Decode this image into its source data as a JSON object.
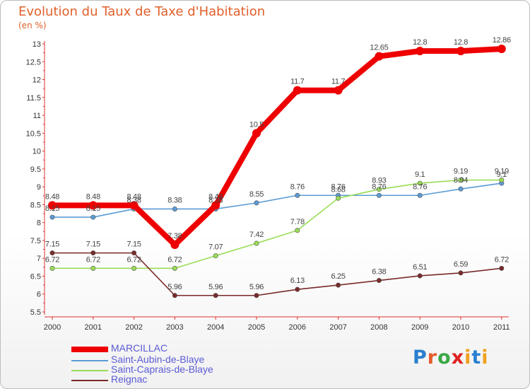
{
  "title": "Evolution du Taux de Taxe d'Habitation",
  "subtitle": "(en %)",
  "logo": {
    "text": "Proxiti",
    "letters": [
      "P",
      "r",
      "o",
      "x",
      "i",
      "t",
      "i"
    ]
  },
  "chart_data": {
    "type": "line",
    "x": [
      "2000",
      "2001",
      "2002",
      "2003",
      "2004",
      "2005",
      "2006",
      "2007",
      "2008",
      "2009",
      "2010",
      "2011"
    ],
    "ylim": [
      5.5,
      13
    ],
    "yticks": [
      "5.5",
      "6",
      "6.5",
      "7",
      "7.5",
      "8",
      "8.5",
      "9",
      "9.5",
      "10",
      "10.5",
      "11",
      "11.5",
      "12",
      "12.5",
      "13"
    ],
    "grid": false,
    "legend_position": "bottom-left",
    "series": [
      {
        "name": "MARCILLAC",
        "color": "#ee0000",
        "values": [
          8.48,
          8.48,
          8.48,
          7.38,
          8.48,
          10.5,
          11.7,
          11.7,
          12.65,
          12.8,
          12.8,
          12.86
        ],
        "labels": [
          "8.48",
          "8.48",
          "8.48",
          "7.38",
          "8.48",
          "10.5",
          "11.7",
          "11.7",
          "12.65",
          "12.8",
          "12.8",
          "12.86"
        ]
      },
      {
        "name": "Saint-Aubin-de-Blaye",
        "color": "#5b9bd5",
        "values": [
          8.15,
          8.15,
          8.38,
          8.38,
          8.38,
          8.55,
          8.76,
          8.76,
          8.76,
          8.76,
          8.94,
          9.1
        ],
        "labels": [
          "8.15",
          "8.15",
          "8.38",
          "8.38",
          "8.38",
          "8.55",
          "8.76",
          "8.76",
          "8.76",
          "8.76",
          "8.94",
          "9.1"
        ]
      },
      {
        "name": "Saint-Caprais-de-Blaye",
        "color": "#99dd55",
        "values": [
          6.72,
          6.72,
          6.72,
          6.72,
          7.07,
          7.42,
          7.78,
          8.68,
          8.93,
          9.1,
          9.19,
          9.19
        ],
        "labels": [
          "6.72",
          "6.72",
          "6.72",
          "6.72",
          "7.07",
          "7.42",
          "7.78",
          "8.68",
          "8.93",
          "9.1",
          "9.19",
          "9.19"
        ]
      },
      {
        "name": "Reignac",
        "color": "#7a2a2a",
        "values": [
          7.15,
          7.15,
          7.15,
          5.96,
          5.96,
          5.96,
          6.13,
          6.25,
          6.38,
          6.51,
          6.59,
          6.72
        ],
        "labels": [
          "7.15",
          "7.15",
          "7.15",
          "5.96",
          "5.96",
          "5.96",
          "6.13",
          "6.25",
          "6.38",
          "6.51",
          "6.59",
          "6.72"
        ]
      }
    ]
  }
}
